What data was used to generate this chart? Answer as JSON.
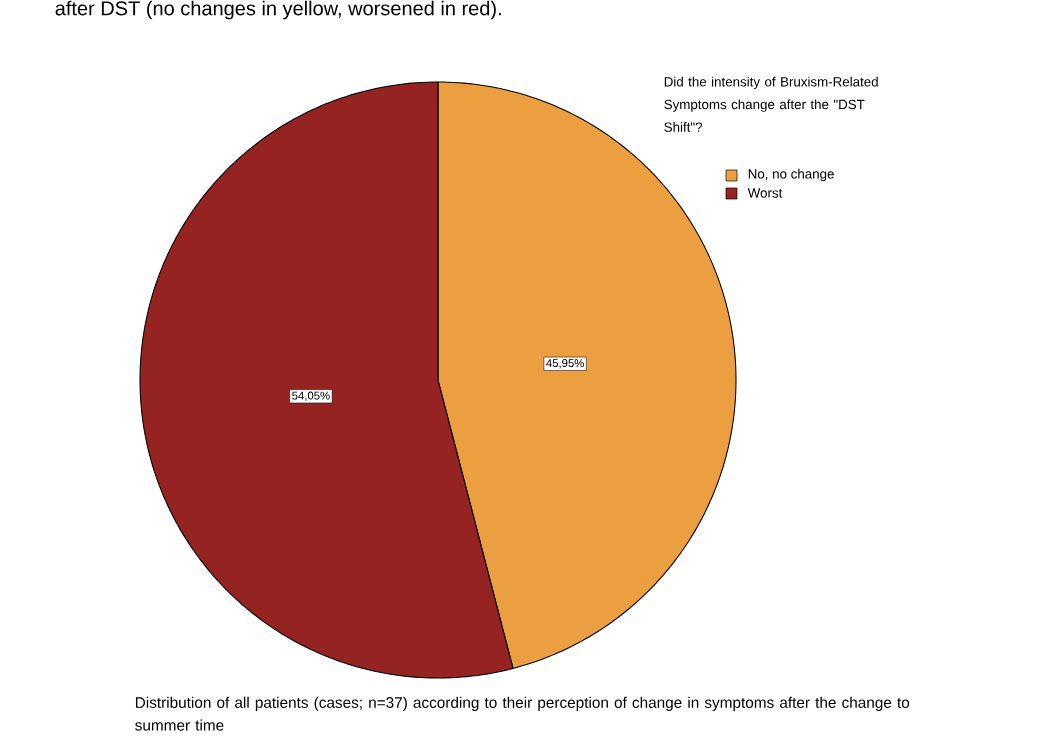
{
  "chart_data": {
    "type": "pie",
    "title": "after DST (no changes in yellow, worsened in red).",
    "legend_title": "Did the intensity of Bruxism-Related Symptoms change after the \"DST Shift\"?",
    "categories": [
      "No, no change",
      "Worst"
    ],
    "values": [
      45.95,
      54.05
    ],
    "colors": [
      "#eb9f40",
      "#952322"
    ],
    "value_labels": [
      "45,95%",
      "54,05%"
    ],
    "legend": "top right",
    "annotations": [
      "Distribution of all patients (cases; n=37) according to their perception of change in symptoms after the change to summer time"
    ]
  }
}
